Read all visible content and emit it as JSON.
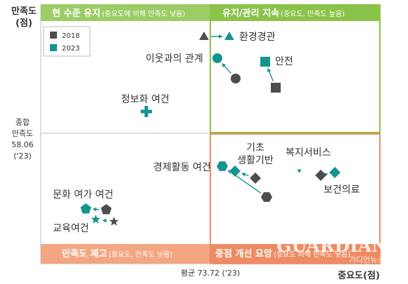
{
  "chart_data": {
    "type": "scatter",
    "y_axis_title": [
      "만족도",
      "(점)"
    ],
    "x_axis_title": "중요도(점)",
    "y_reference_label": [
      "종합",
      "만족도",
      "58.06",
      "('23)"
    ],
    "x_reference_label": "평균 73.72 ('23)",
    "legend": [
      {
        "name": "2018",
        "color": "#4d4d4d"
      },
      {
        "name": "2023",
        "color": "#14938f"
      }
    ],
    "quadrants": [
      {
        "key": "top-left",
        "title": "현 수준 유지",
        "sub": "(중요도에 비해 만족도 낮음)",
        "color": "#9ccc65"
      },
      {
        "key": "top-right",
        "title": "유지/관리 지속",
        "sub": "(중요도, 만족도 높음)",
        "color": "#8bc34a"
      },
      {
        "key": "bottom-left",
        "title": "만족도 제고",
        "sub": "(중요도, 만족도 낮음)",
        "color": "#f4a582"
      },
      {
        "key": "bottom-right",
        "title": "중점 개선 요망",
        "sub": "(중요도 비해 만족도 낮음)",
        "color": "#ee8b63"
      }
    ],
    "items": [
      {
        "name": "환경경관",
        "marker": "triangle"
      },
      {
        "name": "이웃과의 관계",
        "marker": "circle"
      },
      {
        "name": "안전",
        "marker": "square"
      },
      {
        "name": "정보화 여건",
        "marker": "plus"
      },
      {
        "name": "기초 생활기반",
        "marker": "diamond"
      },
      {
        "name": "경제활동 여건",
        "marker": "hexagon"
      },
      {
        "name": "복지서비스",
        "marker": "moon"
      },
      {
        "name": "보건의료",
        "marker": "diamond"
      },
      {
        "name": "문화 여가 여건",
        "marker": "pentagon"
      },
      {
        "name": "교육여건",
        "marker": "star"
      }
    ]
  },
  "watermark": {
    "main": "GUARDIAN NEWS",
    "sub": "가디언뉴스"
  }
}
